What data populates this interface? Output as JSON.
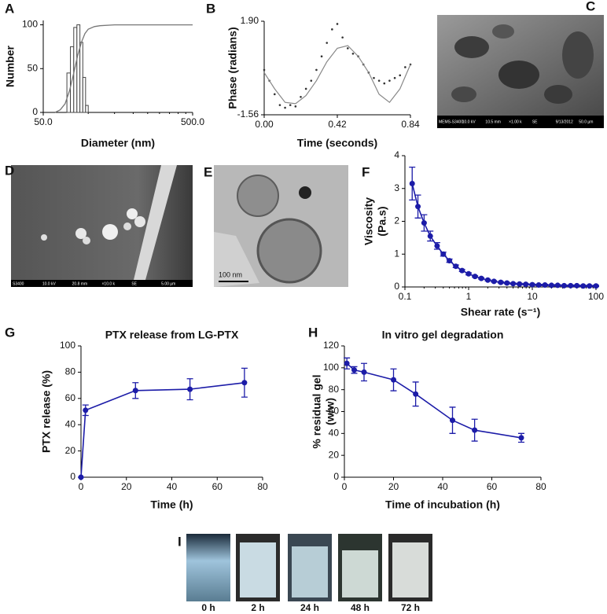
{
  "chart_data": [
    {
      "type": "histogram",
      "panel": "A",
      "x_label": "Diameter (nm)",
      "y_label": [
        "Number"
      ],
      "xscale": "log",
      "xlim": [
        50,
        500
      ],
      "xticks": [
        {
          "value": 50,
          "label": "50.0"
        },
        {
          "value": 500,
          "label": "500.0"
        }
      ],
      "ylim": [
        0,
        105
      ],
      "yticks": [
        0,
        50,
        100
      ],
      "color": "#444444",
      "bins": [
        72,
        76,
        80,
        84,
        88,
        92,
        96,
        100
      ],
      "counts": [
        45,
        75,
        97,
        100,
        80,
        40,
        8
      ],
      "cumulative_x": [
        60,
        65,
        70,
        75,
        80,
        85,
        90,
        95,
        100,
        110,
        120,
        150,
        200,
        300,
        500
      ],
      "cumulative_values": [
        0,
        3,
        10,
        25,
        45,
        65,
        80,
        90,
        95,
        98,
        99,
        100,
        100,
        100,
        100
      ]
    },
    {
      "type": "scatter",
      "panel": "B",
      "x_label": "Time (seconds)",
      "y_label": [
        "Phase (radians)"
      ],
      "xlim": [
        0,
        0.84
      ],
      "xticks": [
        {
          "value": 0,
          "label": "0.00"
        },
        0.42,
        0.84
      ],
      "ylim": [
        -1.56,
        1.9
      ],
      "yticks": [
        -1.56,
        {
          "value": 1.9,
          "label": "1.90"
        }
      ],
      "color": "#333333",
      "x": [
        0,
        0.03,
        0.06,
        0.09,
        0.12,
        0.15,
        0.18,
        0.21,
        0.24,
        0.27,
        0.3,
        0.33,
        0.36,
        0.39,
        0.42,
        0.45,
        0.48,
        0.51,
        0.54,
        0.57,
        0.6,
        0.63,
        0.66,
        0.69,
        0.72,
        0.75,
        0.78,
        0.81,
        0.84
      ],
      "values": [
        0.1,
        -0.3,
        -0.8,
        -1.2,
        -1.3,
        -1.2,
        -1.25,
        -0.9,
        -0.6,
        -0.3,
        0.1,
        0.6,
        1.1,
        1.6,
        1.8,
        1.3,
        0.9,
        0.7,
        0.6,
        0.3,
        0.0,
        -0.2,
        -0.3,
        -0.4,
        -0.3,
        -0.2,
        -0.1,
        0.2,
        0.3
      ],
      "fit_x": [
        0,
        0.06,
        0.12,
        0.18,
        0.24,
        0.3,
        0.36,
        0.42,
        0.48,
        0.54,
        0.6,
        0.66,
        0.72,
        0.78,
        0.84
      ],
      "fit_values": [
        0.0,
        -0.6,
        -1.1,
        -1.15,
        -0.85,
        -0.3,
        0.4,
        0.9,
        1.0,
        0.6,
        0.0,
        -0.8,
        -1.1,
        -0.6,
        0.3
      ]
    },
    {
      "type": "line",
      "panel": "F",
      "x_label": "Shear rate (s⁻¹)",
      "y_label": [
        "Viscosity",
        "(Pa.s)"
      ],
      "xscale": "log",
      "xlim": [
        0.1,
        100
      ],
      "xticks": [
        0.1,
        1,
        10,
        100
      ],
      "ylim": [
        0,
        4
      ],
      "yticks": [
        0,
        1,
        2,
        3,
        4
      ],
      "color": "#1c1ca8",
      "x": [
        0.13,
        0.16,
        0.2,
        0.25,
        0.32,
        0.4,
        0.5,
        0.63,
        0.79,
        1,
        1.26,
        1.58,
        2,
        2.5,
        3.2,
        4,
        5,
        6.3,
        7.9,
        10,
        12.6,
        15.8,
        20,
        25,
        31.6,
        40,
        50,
        63,
        79,
        100
      ],
      "values": [
        3.15,
        2.45,
        1.95,
        1.55,
        1.25,
        1.0,
        0.8,
        0.63,
        0.5,
        0.4,
        0.32,
        0.26,
        0.21,
        0.17,
        0.14,
        0.12,
        0.1,
        0.09,
        0.08,
        0.07,
        0.06,
        0.06,
        0.05,
        0.05,
        0.04,
        0.04,
        0.04,
        0.03,
        0.03,
        0.03
      ],
      "errors": [
        0.5,
        0.35,
        0.25,
        0.15,
        0.1,
        0.06,
        0.05,
        0.04,
        0.03,
        0.03,
        0.02,
        0.02,
        0.02,
        0.02,
        0.02,
        0.02,
        0.02,
        0.02,
        0.02,
        0.02,
        0.02,
        0.02,
        0.02,
        0.02,
        0.02,
        0.02,
        0.02,
        0.02,
        0.02,
        0.02
      ]
    },
    {
      "type": "line",
      "panel": "G",
      "title": "PTX release from LG-PTX",
      "x_label": "Time (h)",
      "y_label": [
        "PTX release (%)"
      ],
      "xlim": [
        0,
        80
      ],
      "xticks": [
        0,
        20,
        40,
        60,
        80
      ],
      "ylim": [
        0,
        100
      ],
      "yticks": [
        0,
        20,
        40,
        60,
        80,
        100
      ],
      "color": "#1c1ca8",
      "x": [
        0,
        2,
        24,
        48,
        72
      ],
      "values": [
        0,
        51,
        66,
        67,
        72
      ],
      "errors": [
        0,
        4,
        6,
        8,
        11
      ]
    },
    {
      "type": "line",
      "panel": "H",
      "title": "In vitro gel degradation",
      "x_label": "Time of incubation (h)",
      "y_label": [
        "% residual gel",
        "(w/w)"
      ],
      "xlim": [
        0,
        80
      ],
      "xticks": [
        0,
        20,
        40,
        60,
        80
      ],
      "ylim": [
        0,
        120
      ],
      "yticks": [
        0,
        20,
        40,
        60,
        80,
        100,
        120
      ],
      "color": "#1c1ca8",
      "x": [
        1,
        4,
        8,
        20,
        29,
        44,
        53,
        72
      ],
      "values": [
        104,
        98,
        96,
        89,
        76,
        52,
        43,
        36
      ],
      "errors": [
        5,
        3,
        8,
        10,
        11,
        12,
        10,
        4
      ]
    }
  ],
  "micrographs": [
    {
      "panel": "C",
      "info": [
        "MEMS-S3400",
        "10.0 kV",
        "10.5 mm",
        "×1.00 k",
        "SE",
        "9/13/2012",
        "50.0 µm"
      ]
    },
    {
      "panel": "D",
      "info": [
        "S3400",
        "10.0 kV",
        "20.8 mm",
        "×10.0 k",
        "SE",
        "5.00 µm"
      ]
    },
    {
      "panel": "E",
      "scale_bar": "100 nm"
    }
  ],
  "vials": {
    "panel": "I",
    "labels": [
      "0 h",
      "2 h",
      "24 h",
      "48 h",
      "72 h"
    ]
  }
}
